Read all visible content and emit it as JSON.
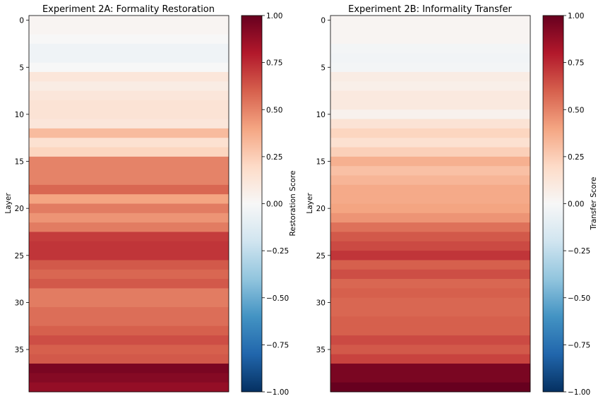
{
  "figure": {
    "background": "#ffffff"
  },
  "colormap": {
    "name": "RdBu_r",
    "stops": [
      "#053061",
      "#2166ac",
      "#4393c3",
      "#92c5de",
      "#d1e5f0",
      "#f7f7f7",
      "#fddbc7",
      "#f4a582",
      "#d6604d",
      "#b2182b",
      "#67001f"
    ]
  },
  "chart_data": [
    {
      "type": "heatmap",
      "title": "Experiment 2A: Formality Restoration",
      "ylabel": "Layer",
      "xlabel": "",
      "colorbar_label": "Restoration Score",
      "vlim": [
        -1.0,
        1.0
      ],
      "colorbar_ticks": [
        "1.00",
        "0.75",
        "0.50",
        "0.25",
        "0.00",
        "−0.25",
        "−0.50",
        "−0.75",
        "−1.00"
      ],
      "y_ticks": [
        "0",
        "5",
        "10",
        "15",
        "20",
        "25",
        "30",
        "35"
      ],
      "layers": [
        0,
        1,
        2,
        3,
        4,
        5,
        6,
        7,
        8,
        9,
        10,
        11,
        12,
        13,
        14,
        15,
        16,
        17,
        18,
        19,
        20,
        21,
        22,
        23,
        24,
        25,
        26,
        27,
        28,
        29,
        30,
        31,
        32,
        33,
        34,
        35,
        36,
        37,
        38,
        39
      ],
      "values": [
        0.02,
        0.02,
        0.0,
        -0.04,
        -0.04,
        0.0,
        0.12,
        0.08,
        0.12,
        0.14,
        0.14,
        0.12,
        0.32,
        0.16,
        0.22,
        0.5,
        0.5,
        0.5,
        0.58,
        0.4,
        0.52,
        0.45,
        0.52,
        0.7,
        0.72,
        0.72,
        0.62,
        0.58,
        0.62,
        0.52,
        0.52,
        0.56,
        0.56,
        0.6,
        0.65,
        0.6,
        0.62,
        0.95,
        0.92,
        0.88
      ]
    },
    {
      "type": "heatmap",
      "title": "Experiment 2B: Informality Transfer",
      "ylabel": "Layer",
      "xlabel": "",
      "colorbar_label": "Transfer Score",
      "vlim": [
        -1.0,
        1.0
      ],
      "colorbar_ticks": [
        "1.00",
        "0.75",
        "0.50",
        "0.25",
        "0.00",
        "−0.25",
        "−0.50",
        "−0.75",
        "−1.00"
      ],
      "y_ticks": [
        "0",
        "5",
        "10",
        "15",
        "20",
        "25",
        "30",
        "35"
      ],
      "layers": [
        0,
        1,
        2,
        3,
        4,
        5,
        6,
        7,
        8,
        9,
        10,
        11,
        12,
        13,
        14,
        15,
        16,
        17,
        18,
        19,
        20,
        21,
        22,
        23,
        24,
        25,
        26,
        27,
        28,
        29,
        30,
        31,
        32,
        33,
        34,
        35,
        36,
        37,
        38,
        39
      ],
      "values": [
        0.02,
        0.02,
        0.02,
        -0.02,
        -0.03,
        -0.02,
        0.08,
        0.06,
        0.1,
        0.1,
        0.04,
        0.14,
        0.22,
        0.16,
        0.24,
        0.36,
        0.3,
        0.34,
        0.38,
        0.38,
        0.4,
        0.45,
        0.55,
        0.62,
        0.66,
        0.72,
        0.6,
        0.65,
        0.58,
        0.6,
        0.58,
        0.58,
        0.6,
        0.6,
        0.66,
        0.62,
        0.68,
        0.95,
        0.95,
        1.0
      ]
    }
  ]
}
